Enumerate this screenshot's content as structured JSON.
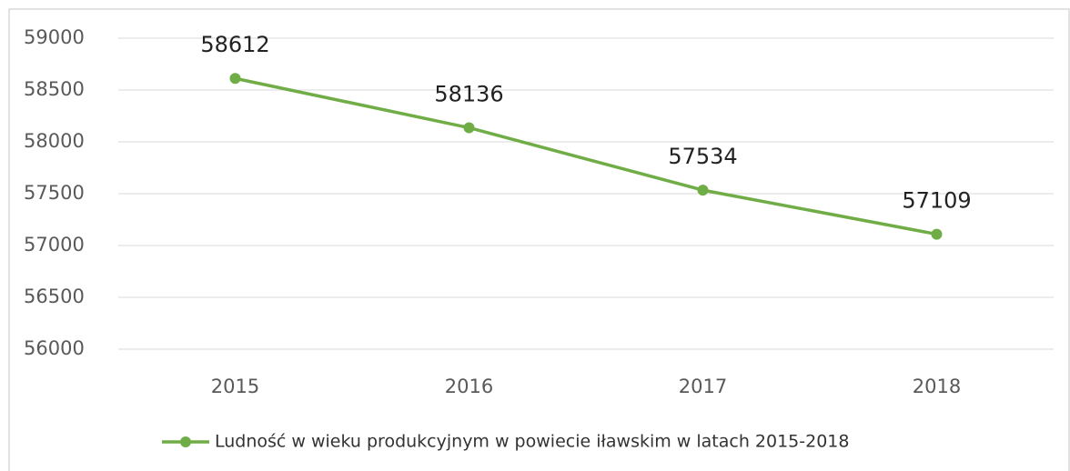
{
  "chart_data": {
    "type": "line",
    "categories": [
      "2015",
      "2016",
      "2017",
      "2018"
    ],
    "series": [
      {
        "name": "Ludność w wieku produkcyjnym w powiecie iławskim w latach 2015-2018",
        "color": "#70ad47",
        "values": [
          58612,
          58136,
          57534,
          57109
        ]
      }
    ],
    "ylim": [
      56000,
      59000
    ],
    "yticks": [
      56000,
      56500,
      57000,
      57500,
      58000,
      58500,
      59000
    ],
    "grid": true,
    "legend": "bottom",
    "data_labels": true
  }
}
